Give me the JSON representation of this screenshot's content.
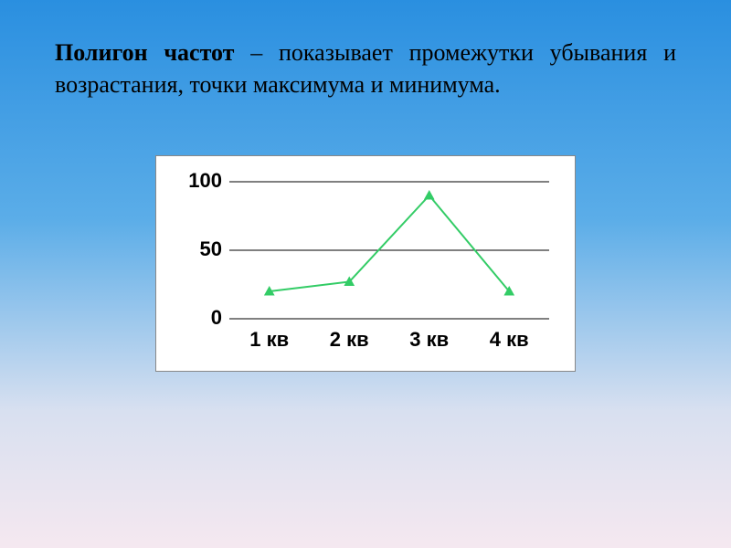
{
  "heading": {
    "bold_part": "Полигон частот",
    "rest_part": " – показывает промежутки убывания и возрастания, точки максимума и минимума."
  },
  "chart": {
    "type": "line",
    "background_color": "#ffffff",
    "grid_color": "#000000",
    "series_color": "#33cc66",
    "marker_color": "#33cc66",
    "marker_size": 5,
    "line_width": 2,
    "categories": [
      "1 кв",
      "2 кв",
      "3 кв",
      "4 кв"
    ],
    "values": [
      20,
      27,
      90,
      20
    ],
    "ylim": [
      0,
      100
    ],
    "yticks": [
      0,
      50,
      100
    ],
    "label_fontsize": 22,
    "label_fontweight": "bold"
  }
}
